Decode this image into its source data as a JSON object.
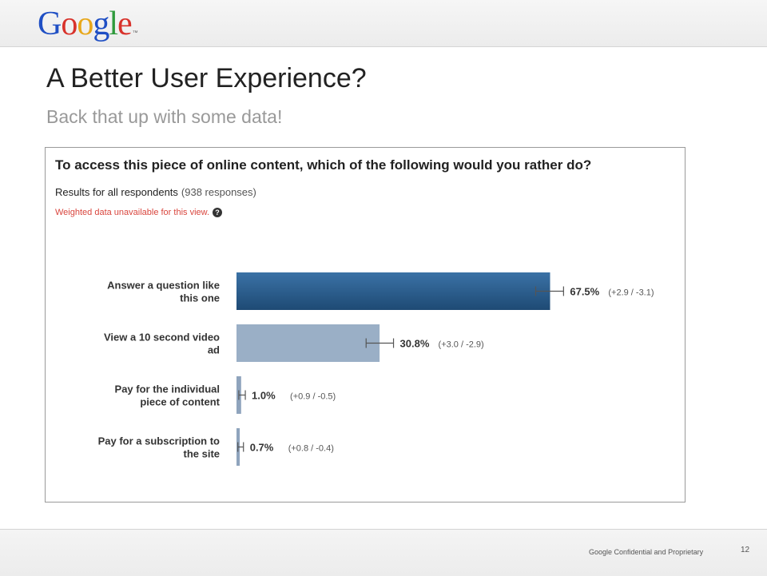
{
  "header": {
    "logo_letters": [
      {
        "ch": "G",
        "color": "#1f4fc4"
      },
      {
        "ch": "o",
        "color": "#d8322b"
      },
      {
        "ch": "o",
        "color": "#e8a71a"
      },
      {
        "ch": "g",
        "color": "#1f4fc4"
      },
      {
        "ch": "l",
        "color": "#2e9a3c"
      },
      {
        "ch": "e",
        "color": "#d8322b"
      }
    ],
    "logo_tm": "™"
  },
  "slide": {
    "title": "A Better User Experience?",
    "subtitle": "Back that up with some data!"
  },
  "survey": {
    "question": "To access this piece of online content, which of the following would you rather do?",
    "results_label": "Results for all respondents",
    "responses": "(938 responses)",
    "note": "Weighted data unavailable for this view.",
    "help_icon": "?"
  },
  "chart_data": {
    "type": "bar",
    "orientation": "horizontal",
    "categories": [
      [
        "Answer a question like",
        "this one"
      ],
      [
        "View a 10 second video",
        "ad"
      ],
      [
        "Pay for the individual",
        "piece of content"
      ],
      [
        "Pay for a subscription to",
        "the site"
      ]
    ],
    "values": [
      67.5,
      30.8,
      1.0,
      0.7
    ],
    "value_labels": [
      "67.5%",
      "30.8%",
      "1.0%",
      "0.7%"
    ],
    "error_plus": [
      2.9,
      3.0,
      0.9,
      0.8
    ],
    "error_minus": [
      3.1,
      2.9,
      0.5,
      0.4
    ],
    "error_labels": [
      "(+2.9 / -3.1)",
      "(+3.0 / -2.9)",
      "(+0.9 / -0.5)",
      "(+0.8 / -0.4)"
    ],
    "bar_colors": [
      "#2b5d8b",
      "#9aafc6",
      "#8fa4bd",
      "#8fa4bd"
    ],
    "xlim": [
      0,
      100
    ]
  },
  "footer": {
    "confidential": "Google Confidential and Proprietary",
    "page_number": "12"
  }
}
